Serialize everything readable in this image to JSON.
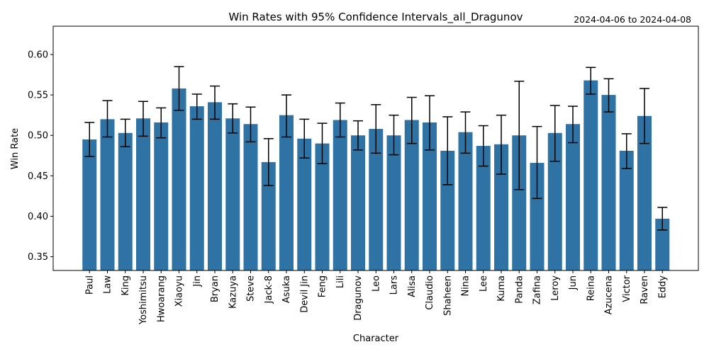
{
  "chart_data": {
    "type": "bar",
    "title": "Win Rates with 95% Confidence Intervals_all_Dragunov",
    "date_range": "2024-04-06 to 2024-04-08",
    "xlabel": "Character",
    "ylabel": "Win Rate",
    "ylim": [
      0.333,
      0.635
    ],
    "yticks": [
      "0.35",
      "0.40",
      "0.45",
      "0.50",
      "0.55",
      "0.60"
    ],
    "bar_color": "#2e73a4",
    "errorbar_color": "#000000",
    "categories": [
      "Paul",
      "Law",
      "King",
      "Yoshimitsu",
      "Hwoarang",
      "Xiaoyu",
      "Jin",
      "Bryan",
      "Kazuya",
      "Steve",
      "Jack-8",
      "Asuka",
      "Devil Jin",
      "Feng",
      "Lili",
      "Dragunov",
      "Leo",
      "Lars",
      "Alisa",
      "Claudio",
      "Shaheen",
      "Nina",
      "Lee",
      "Kuma",
      "Panda",
      "Zafina",
      "Leroy",
      "Jun",
      "Reina",
      "Azucena",
      "Victor",
      "Raven",
      "Eddy"
    ],
    "values": [
      0.495,
      0.52,
      0.503,
      0.521,
      0.516,
      0.558,
      0.536,
      0.541,
      0.521,
      0.514,
      0.467,
      0.525,
      0.496,
      0.49,
      0.519,
      0.5,
      0.508,
      0.5,
      0.519,
      0.516,
      0.481,
      0.504,
      0.487,
      0.489,
      0.5,
      0.466,
      0.503,
      0.514,
      0.568,
      0.55,
      0.481,
      0.524,
      0.397
    ],
    "ci_low": [
      0.474,
      0.498,
      0.486,
      0.499,
      0.497,
      0.531,
      0.52,
      0.52,
      0.503,
      0.492,
      0.438,
      0.498,
      0.472,
      0.465,
      0.498,
      0.482,
      0.478,
      0.476,
      0.49,
      0.482,
      0.439,
      0.478,
      0.462,
      0.452,
      0.433,
      0.422,
      0.468,
      0.491,
      0.551,
      0.529,
      0.459,
      0.49,
      0.383
    ],
    "ci_high": [
      0.516,
      0.543,
      0.52,
      0.542,
      0.534,
      0.585,
      0.551,
      0.561,
      0.539,
      0.535,
      0.496,
      0.55,
      0.52,
      0.515,
      0.54,
      0.518,
      0.538,
      0.525,
      0.547,
      0.549,
      0.523,
      0.529,
      0.512,
      0.525,
      0.567,
      0.511,
      0.537,
      0.536,
      0.584,
      0.57,
      0.502,
      0.558,
      0.411
    ],
    "grid": false,
    "legend": "none"
  }
}
